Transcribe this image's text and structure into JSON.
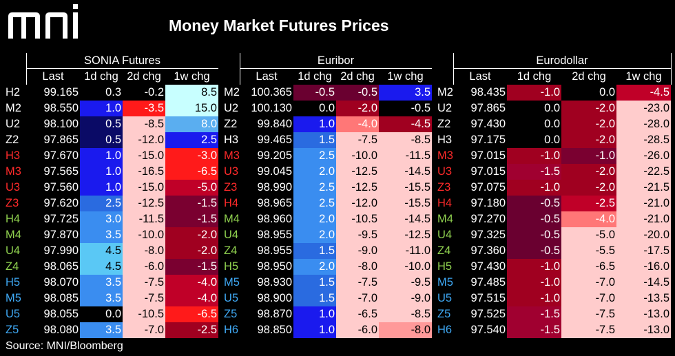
{
  "title": "Money Market Futures Prices",
  "source": "Source: MNI/Bloomberg",
  "logo_text": "mni",
  "colors": {
    "background": "#000000",
    "label_white": "#ffffff",
    "label_red": "#ff2a2a",
    "label_green": "#8fd14f",
    "label_blue": "#3fa9f5"
  },
  "chart_data": {
    "type": "table",
    "title": "Money Market Futures Prices",
    "groups": [
      {
        "name": "SONIA Futures",
        "columns": [
          "Last",
          "1d chg",
          "2d chg",
          "1w chg"
        ],
        "rows": [
          {
            "contract": "H2",
            "label_color": "white",
            "values": [
              "99.165",
              "0.3",
              "-0.2",
              "8.5"
            ],
            "colors": [
              "#000000",
              "#000000",
              "#000000",
              "#c8ffff"
            ]
          },
          {
            "contract": "M2",
            "label_color": "white",
            "values": [
              "98.550",
              "1.0",
              "-3.5",
              "15.0"
            ],
            "colors": [
              "#000000",
              "#1a1aee",
              "#ff1a1a",
              "#c8ffff"
            ]
          },
          {
            "contract": "U2",
            "label_color": "white",
            "values": [
              "98.100",
              "0.5",
              "-8.5",
              "8.0"
            ],
            "colors": [
              "#000000",
              "#0a0a66",
              "#ffcccc",
              "#5aaef0"
            ]
          },
          {
            "contract": "Z2",
            "label_color": "white",
            "values": [
              "97.865",
              "0.5",
              "-12.0",
              "2.5"
            ],
            "colors": [
              "#000000",
              "#0a0a66",
              "#ffcccc",
              "#1a1aee"
            ]
          },
          {
            "contract": "H3",
            "label_color": "red",
            "values": [
              "97.670",
              "1.0",
              "-15.0",
              "-3.0"
            ],
            "colors": [
              "#000000",
              "#1a1aee",
              "#ffcccc",
              "#ff1a1a"
            ]
          },
          {
            "contract": "M3",
            "label_color": "red",
            "values": [
              "97.565",
              "1.0",
              "-16.5",
              "-6.5"
            ],
            "colors": [
              "#000000",
              "#1a1aee",
              "#ffcccc",
              "#ff1a1a"
            ]
          },
          {
            "contract": "U3",
            "label_color": "red",
            "values": [
              "97.560",
              "1.0",
              "-15.0",
              "-5.0"
            ],
            "colors": [
              "#000000",
              "#1a1aee",
              "#ffcccc",
              "#c00028"
            ]
          },
          {
            "contract": "Z3",
            "label_color": "red",
            "values": [
              "97.620",
              "2.5",
              "-12.5",
              "-1.5"
            ],
            "colors": [
              "#000000",
              "#2a6be0",
              "#ffcccc",
              "#7a0030"
            ]
          },
          {
            "contract": "H4",
            "label_color": "green",
            "values": [
              "97.725",
              "3.0",
              "-11.5",
              "-1.5"
            ],
            "colors": [
              "#000000",
              "#3a8df0",
              "#ffcccc",
              "#7a0030"
            ]
          },
          {
            "contract": "M4",
            "label_color": "green",
            "values": [
              "97.870",
              "3.5",
              "-10.0",
              "-2.0"
            ],
            "colors": [
              "#000000",
              "#3a8df0",
              "#ffcccc",
              "#a00020"
            ]
          },
          {
            "contract": "U4",
            "label_color": "green",
            "values": [
              "97.990",
              "4.5",
              "-8.0",
              "-2.0"
            ],
            "colors": [
              "#000000",
              "#5ac8f5",
              "#ffcccc",
              "#a00020"
            ]
          },
          {
            "contract": "Z4",
            "label_color": "green",
            "values": [
              "98.065",
              "4.5",
              "-6.0",
              "-1.5"
            ],
            "colors": [
              "#000000",
              "#5ac8f5",
              "#ffcccc",
              "#7a0030"
            ]
          },
          {
            "contract": "H5",
            "label_color": "blue",
            "values": [
              "98.070",
              "3.5",
              "-7.5",
              "-4.0"
            ],
            "colors": [
              "#000000",
              "#3a8df0",
              "#ffcccc",
              "#c00028"
            ]
          },
          {
            "contract": "M5",
            "label_color": "blue",
            "values": [
              "98.085",
              "3.5",
              "-7.5",
              "-4.0"
            ],
            "colors": [
              "#000000",
              "#3a8df0",
              "#ffcccc",
              "#c00028"
            ]
          },
          {
            "contract": "U5",
            "label_color": "blue",
            "values": [
              "98.055",
              "0.0",
              "-10.5",
              "-6.5"
            ],
            "colors": [
              "#000000",
              "#000000",
              "#ffcccc",
              "#ff1a1a"
            ]
          },
          {
            "contract": "Z5",
            "label_color": "blue",
            "values": [
              "98.080",
              "3.5",
              "-7.0",
              "-2.5"
            ],
            "colors": [
              "#000000",
              "#3a8df0",
              "#ffcccc",
              "#a00020"
            ]
          }
        ]
      },
      {
        "name": "Euribor",
        "columns": [
          "Last",
          "1d chg",
          "2d chg",
          "1w chg"
        ],
        "rows": [
          {
            "contract": "M2",
            "label_color": "white",
            "values": [
              "100.365",
              "-0.5",
              "-0.5",
              "3.5"
            ],
            "colors": [
              "#000000",
              "#6a0030",
              "#6a0030",
              "#1a1aee"
            ]
          },
          {
            "contract": "U2",
            "label_color": "white",
            "values": [
              "100.130",
              "0.0",
              "-2.0",
              "-0.5"
            ],
            "colors": [
              "#000000",
              "#000000",
              "#a00020",
              "#000000"
            ]
          },
          {
            "contract": "Z2",
            "label_color": "white",
            "values": [
              "99.840",
              "1.0",
              "-4.0",
              "-4.5"
            ],
            "colors": [
              "#000000",
              "#1a1aee",
              "#ff7777",
              "#a00020"
            ]
          },
          {
            "contract": "H3",
            "label_color": "white",
            "values": [
              "99.465",
              "1.5",
              "-7.5",
              "-8.5"
            ],
            "colors": [
              "#000000",
              "#2a6be0",
              "#ffcccc",
              "#ffcccc"
            ]
          },
          {
            "contract": "M3",
            "label_color": "red",
            "values": [
              "99.205",
              "2.5",
              "-10.0",
              "-11.5"
            ],
            "colors": [
              "#000000",
              "#3a8df0",
              "#ffcccc",
              "#ffcccc"
            ]
          },
          {
            "contract": "U3",
            "label_color": "red",
            "values": [
              "99.045",
              "2.0",
              "-12.5",
              "-14.5"
            ],
            "colors": [
              "#000000",
              "#3a8df0",
              "#ffcccc",
              "#ffcccc"
            ]
          },
          {
            "contract": "Z3",
            "label_color": "red",
            "values": [
              "98.990",
              "2.5",
              "-12.5",
              "-15.5"
            ],
            "colors": [
              "#000000",
              "#3a8df0",
              "#ffcccc",
              "#ffcccc"
            ]
          },
          {
            "contract": "H4",
            "label_color": "red",
            "values": [
              "98.965",
              "2.5",
              "-12.0",
              "-15.5"
            ],
            "colors": [
              "#000000",
              "#3a8df0",
              "#ffcccc",
              "#ffcccc"
            ]
          },
          {
            "contract": "M4",
            "label_color": "green",
            "values": [
              "98.960",
              "2.0",
              "-10.5",
              "-14.5"
            ],
            "colors": [
              "#000000",
              "#3a8df0",
              "#ffcccc",
              "#ffcccc"
            ]
          },
          {
            "contract": "U4",
            "label_color": "green",
            "values": [
              "98.955",
              "2.0",
              "-9.5",
              "-12.5"
            ],
            "colors": [
              "#000000",
              "#3a8df0",
              "#ffcccc",
              "#ffcccc"
            ]
          },
          {
            "contract": "Z4",
            "label_color": "green",
            "values": [
              "98.955",
              "1.5",
              "-9.0",
              "-11.0"
            ],
            "colors": [
              "#000000",
              "#2a6be0",
              "#ffcccc",
              "#ffcccc"
            ]
          },
          {
            "contract": "H5",
            "label_color": "green",
            "values": [
              "98.950",
              "2.0",
              "-8.0",
              "-10.0"
            ],
            "colors": [
              "#000000",
              "#3a8df0",
              "#ffcccc",
              "#ffcccc"
            ]
          },
          {
            "contract": "M5",
            "label_color": "blue",
            "values": [
              "98.930",
              "1.5",
              "-7.5",
              "-9.5"
            ],
            "colors": [
              "#000000",
              "#2a6be0",
              "#ffcccc",
              "#ffcccc"
            ]
          },
          {
            "contract": "U5",
            "label_color": "blue",
            "values": [
              "98.900",
              "1.5",
              "-7.0",
              "-9.0"
            ],
            "colors": [
              "#000000",
              "#2a6be0",
              "#ffcccc",
              "#ffcccc"
            ]
          },
          {
            "contract": "Z5",
            "label_color": "blue",
            "values": [
              "98.870",
              "1.0",
              "-6.5",
              "-8.5"
            ],
            "colors": [
              "#000000",
              "#1a1aee",
              "#ffcccc",
              "#ffcccc"
            ]
          },
          {
            "contract": "H6",
            "label_color": "blue",
            "values": [
              "98.850",
              "1.0",
              "-6.0",
              "-8.0"
            ],
            "colors": [
              "#000000",
              "#1a1aee",
              "#ffcccc",
              "#ff9999"
            ]
          }
        ]
      },
      {
        "name": "Eurodollar",
        "columns": [
          "Last",
          "1d chg",
          "2d chg",
          "1w chg"
        ],
        "rows": [
          {
            "contract": "M2",
            "label_color": "white",
            "values": [
              "98.435",
              "-1.0",
              "0.0",
              "-4.5"
            ],
            "colors": [
              "#000000",
              "#a00020",
              "#000000",
              "#c00028"
            ]
          },
          {
            "contract": "U2",
            "label_color": "white",
            "values": [
              "97.865",
              "0.0",
              "-2.0",
              "-23.0"
            ],
            "colors": [
              "#000000",
              "#000000",
              "#a00020",
              "#ffcccc"
            ]
          },
          {
            "contract": "Z2",
            "label_color": "white",
            "values": [
              "97.430",
              "0.0",
              "-2.0",
              "-28.0"
            ],
            "colors": [
              "#000000",
              "#000000",
              "#a00020",
              "#ffcccc"
            ]
          },
          {
            "contract": "H3",
            "label_color": "white",
            "values": [
              "97.175",
              "0.0",
              "-2.0",
              "-28.5"
            ],
            "colors": [
              "#000000",
              "#000000",
              "#a00020",
              "#ffcccc"
            ]
          },
          {
            "contract": "M3",
            "label_color": "red",
            "values": [
              "97.015",
              "-1.0",
              "-1.0",
              "-26.0"
            ],
            "colors": [
              "#000000",
              "#a00020",
              "#7a0030",
              "#ffcccc"
            ]
          },
          {
            "contract": "U3",
            "label_color": "red",
            "values": [
              "97.015",
              "-1.5",
              "-2.0",
              "-22.5"
            ],
            "colors": [
              "#000000",
              "#a00030",
              "#a00020",
              "#ffcccc"
            ]
          },
          {
            "contract": "Z3",
            "label_color": "red",
            "values": [
              "97.075",
              "-1.0",
              "-2.0",
              "-21.5"
            ],
            "colors": [
              "#000000",
              "#a00020",
              "#a00020",
              "#ffcccc"
            ]
          },
          {
            "contract": "H4",
            "label_color": "red",
            "values": [
              "97.180",
              "-0.5",
              "-2.5",
              "-21.0"
            ],
            "colors": [
              "#000000",
              "#6a0030",
              "#c00028",
              "#ffcccc"
            ]
          },
          {
            "contract": "M4",
            "label_color": "green",
            "values": [
              "97.270",
              "-0.5",
              "-4.0",
              "-21.0"
            ],
            "colors": [
              "#000000",
              "#6a0030",
              "#ff7777",
              "#ffcccc"
            ]
          },
          {
            "contract": "U4",
            "label_color": "green",
            "values": [
              "97.325",
              "-0.5",
              "-5.0",
              "-20.0"
            ],
            "colors": [
              "#000000",
              "#6a0030",
              "#ffcccc",
              "#ffcccc"
            ]
          },
          {
            "contract": "Z4",
            "label_color": "green",
            "values": [
              "97.360",
              "-0.5",
              "-5.5",
              "-17.5"
            ],
            "colors": [
              "#000000",
              "#6a0030",
              "#ffcccc",
              "#ffcccc"
            ]
          },
          {
            "contract": "H5",
            "label_color": "green",
            "values": [
              "97.430",
              "-1.0",
              "-6.5",
              "-16.0"
            ],
            "colors": [
              "#000000",
              "#a00020",
              "#ffcccc",
              "#ffcccc"
            ]
          },
          {
            "contract": "M5",
            "label_color": "blue",
            "values": [
              "97.485",
              "-1.0",
              "-7.0",
              "-14.5"
            ],
            "colors": [
              "#000000",
              "#a00020",
              "#ffcccc",
              "#ffcccc"
            ]
          },
          {
            "contract": "U5",
            "label_color": "blue",
            "values": [
              "97.515",
              "-1.0",
              "-7.0",
              "-13.5"
            ],
            "colors": [
              "#000000",
              "#a00020",
              "#ffcccc",
              "#ffcccc"
            ]
          },
          {
            "contract": "Z5",
            "label_color": "blue",
            "values": [
              "97.525",
              "-1.5",
              "-7.5",
              "-13.0"
            ],
            "colors": [
              "#000000",
              "#a00030",
              "#ffcccc",
              "#ffcccc"
            ]
          },
          {
            "contract": "H6",
            "label_color": "blue",
            "values": [
              "97.540",
              "-1.5",
              "-7.5",
              "-13.0"
            ],
            "colors": [
              "#000000",
              "#a00030",
              "#ffcccc",
              "#ffcccc"
            ]
          }
        ]
      }
    ]
  }
}
